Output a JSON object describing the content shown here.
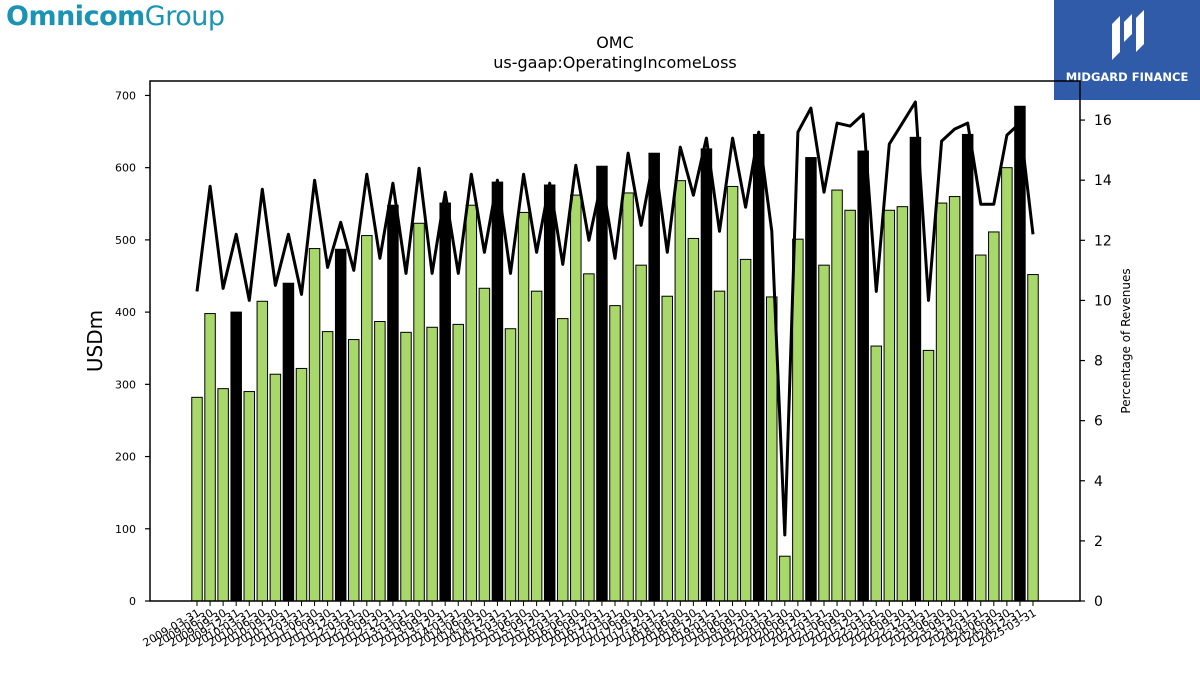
{
  "header": {
    "company_logo_bold": "Omnicom",
    "company_logo_light": "Group",
    "publisher_logo": "MIDGARD FINANCE"
  },
  "colors": {
    "bar_regular": "#a8d86a",
    "bar_q4": "#000000",
    "line": "#000000",
    "logo_text": "#1a93b4",
    "publisher_bg": "#2f5ba8"
  },
  "chart_data": {
    "type": "bar",
    "title": "OMC",
    "subtitle": "us-gaap:OperatingIncomeLoss",
    "ylabel": "USDm",
    "y2label": "Percentage of Revenues",
    "ylim": [
      0,
      720
    ],
    "y2lim": [
      0,
      17.3
    ],
    "yticks": [
      0,
      100,
      200,
      300,
      400,
      500,
      600,
      700
    ],
    "y2ticks": [
      0,
      2,
      4,
      6,
      8,
      10,
      12,
      14,
      16
    ],
    "grid": false,
    "xtick_labels": [
      "2009-03-31",
      "2009-06-30",
      "2009-09-30",
      "2009-12-31",
      "2010-03-31",
      "2010-06-30",
      "2010-09-30",
      "2010-12-31",
      "2011-03-31",
      "2011-06-30",
      "2011-09-30",
      "2011-12-31",
      "2012-03-31",
      "2012-06-30",
      "2012-09-30",
      "2012-12-31",
      "2013-03-31",
      "2013-06-30",
      "2013-09-30",
      "2013-12-31",
      "2014-03-31",
      "2014-06-30",
      "2014-09-30",
      "2014-12-31",
      "2015-03-31",
      "2015-06-30",
      "2015-09-30",
      "2015-12-31",
      "2016-03-31",
      "2016-06-30",
      "2016-09-30",
      "2016-12-31",
      "2017-03-31",
      "2017-06-30",
      "2017-09-30",
      "2017-12-31",
      "2018-03-31",
      "2018-06-30",
      "2018-09-30",
      "2018-12-31",
      "2019-03-31",
      "2019-06-30",
      "2019-09-30",
      "2019-12-31",
      "2020-03-31",
      "2020-06-30",
      "2020-09-30",
      "2020-12-31",
      "2021-03-31",
      "2021-06-30",
      "2021-09-30",
      "2021-12-31",
      "2022-03-31",
      "2022-06-30",
      "2022-09-30",
      "2022-12-31",
      "2023-03-31",
      "2023-06-30",
      "2023-09-30",
      "2023-12-31",
      "2024-03-31",
      "2024-06-30",
      "2024-09-30",
      "2024-12-31",
      "2025-03-31"
    ],
    "series": [
      {
        "values": [
          282,
          398,
          294,
          400,
          290,
          415,
          314,
          440,
          322,
          488,
          373,
          487,
          362,
          506,
          387,
          548,
          372,
          523,
          379,
          551,
          383,
          548,
          433,
          580,
          377,
          538,
          429,
          576,
          391,
          562,
          453,
          602,
          409,
          565,
          465,
          620,
          422,
          582,
          502,
          626,
          429,
          574,
          473,
          646,
          421,
          62,
          501,
          614,
          465,
          569,
          541,
          623,
          353,
          541,
          546,
          642,
          347,
          551,
          560,
          646,
          479,
          511,
          600,
          685,
          452
        ]
      },
      {
        "axis": "right",
        "values": [
          10.3,
          13.8,
          10.4,
          12.2,
          10.0,
          13.7,
          10.5,
          12.2,
          10.2,
          14.0,
          11.1,
          12.6,
          11.0,
          14.2,
          11.4,
          13.9,
          10.9,
          14.4,
          10.9,
          13.6,
          10.9,
          14.2,
          11.6,
          14.0,
          10.9,
          14.2,
          11.6,
          13.9,
          11.2,
          14.5,
          12.0,
          14.0,
          11.4,
          14.9,
          12.5,
          14.8,
          11.6,
          15.1,
          13.5,
          15.4,
          12.3,
          15.4,
          13.1,
          15.6,
          12.3,
          2.2,
          15.6,
          16.4,
          13.6,
          15.9,
          15.8,
          16.2,
          10.3,
          15.2,
          15.9,
          16.6,
          10.0,
          15.3,
          15.7,
          15.9,
          13.2,
          13.2,
          15.5,
          15.9,
          12.2
        ]
      }
    ]
  }
}
